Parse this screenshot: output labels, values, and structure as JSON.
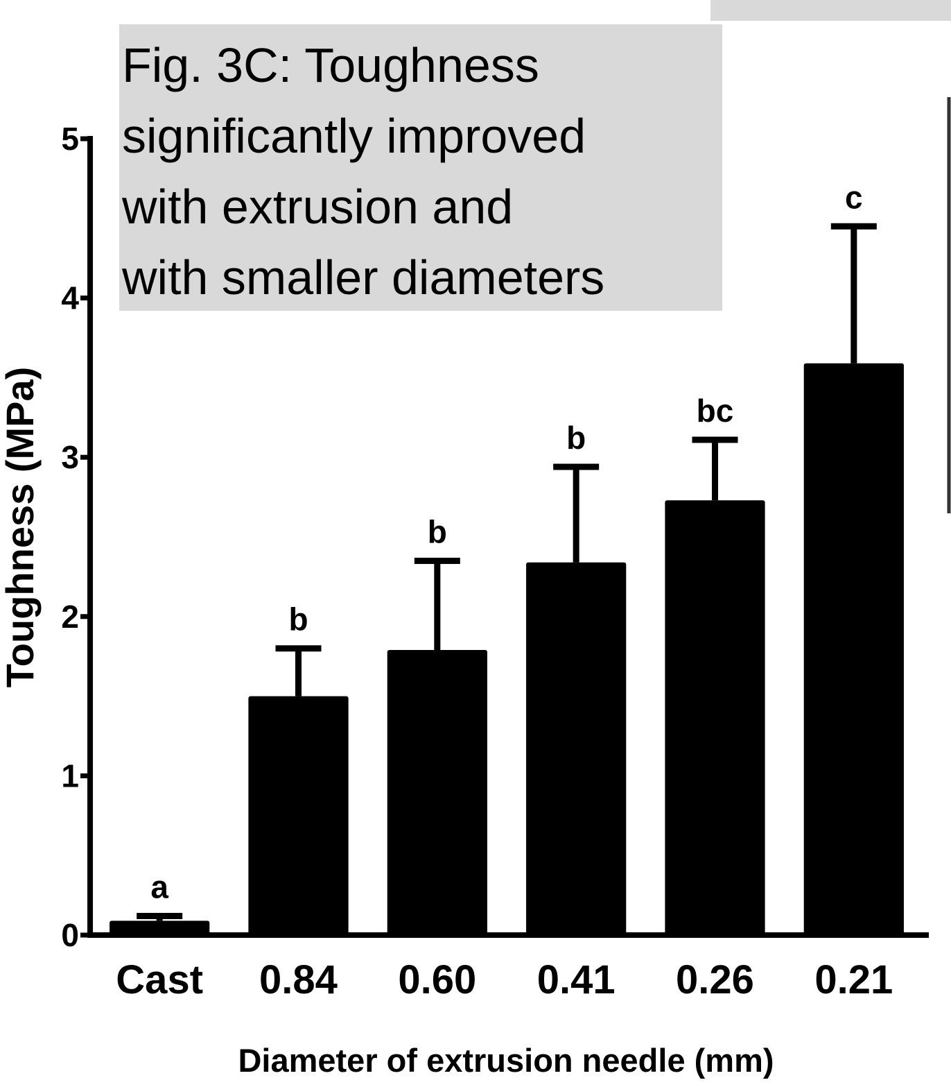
{
  "chart_data": {
    "type": "bar",
    "title_lines": [
      "Fig. 3C: Toughness",
      "significantly improved",
      "with extrusion and",
      "with smaller diameters"
    ],
    "x_label": "Diameter of extrusion needle (mm)",
    "y_label": "Toughness (MPa)",
    "categories": [
      "Cast",
      "0.84",
      "0.60",
      "0.41",
      "0.26",
      "0.21"
    ],
    "values": [
      0.09,
      1.5,
      1.79,
      2.34,
      2.73,
      3.59
    ],
    "errors": [
      0.03,
      0.3,
      0.56,
      0.6,
      0.38,
      0.86
    ],
    "letters": [
      "a",
      "b",
      "b",
      "b",
      "bc",
      "c"
    ],
    "color": "#000000",
    "ylim": [
      0,
      5
    ],
    "yticks": [
      0,
      1,
      2,
      3,
      4,
      5
    ]
  }
}
